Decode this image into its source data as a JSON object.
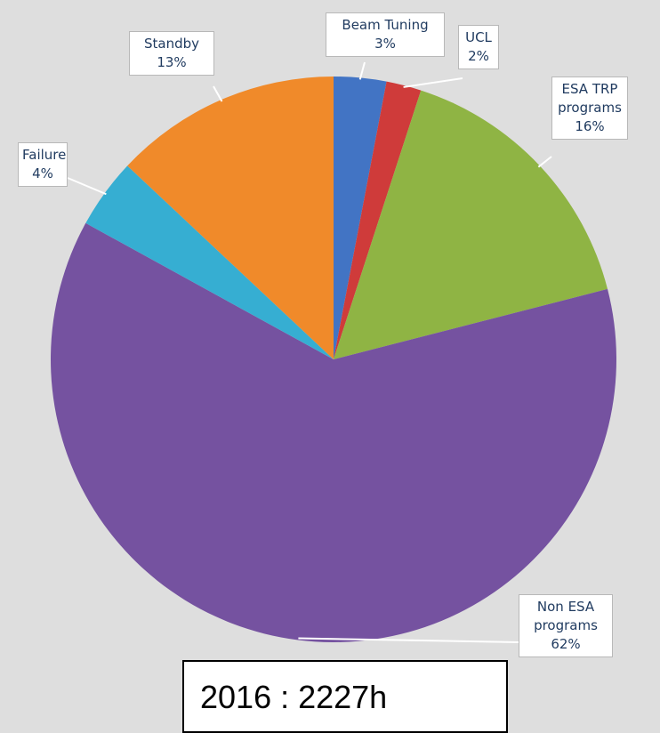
{
  "chart_data": {
    "type": "pie",
    "categories": [
      "Beam Tuning",
      "UCL",
      "ESA TRP programs",
      "Non ESA programs",
      "Failure",
      "Standby"
    ],
    "values": [
      3,
      2,
      16,
      62,
      4,
      13
    ],
    "value_labels": [
      "3%",
      "2%",
      "16%",
      "62%",
      "4%",
      "13%"
    ],
    "colors": [
      "#4274c4",
      "#cf3b3a",
      "#8fb444",
      "#7552a0",
      "#36aed2",
      "#f08a2a"
    ],
    "annotation": "2016 : 2227h"
  }
}
